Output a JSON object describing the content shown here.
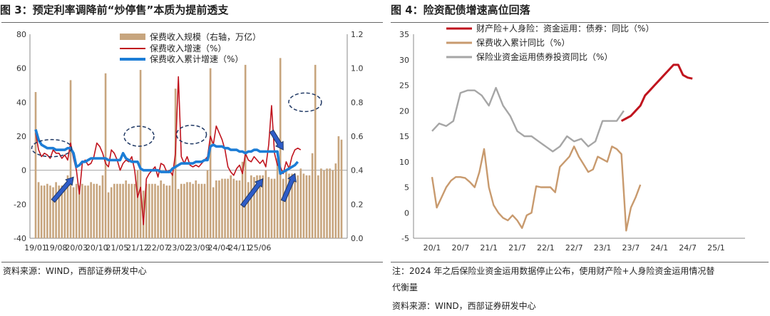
{
  "left": {
    "title": "图 3：预定利率调降前“炒停售”本质为提前透支",
    "source": "资料来源：WIND，西部证券研发中心"
  },
  "right": {
    "title": "图 4：险资配债增速高位回落",
    "note_line1": "注：2024 年之后保险业资金运用数据停止公布，使用财产险+人身险资金运用情况替",
    "note_line2": "代衡量",
    "source": "资料来源：WIND，西部证券研发中心"
  },
  "chart_data": [
    {
      "type": "bar+line",
      "x_ticks": [
        "19/01",
        "19/08",
        "20/03",
        "20/10",
        "21/05",
        "21/12",
        "22/07",
        "23/02",
        "23/09",
        "24/04",
        "24/11",
        "25/06"
      ],
      "y_left_ticks": [
        "80",
        "60",
        "40",
        "20",
        "0",
        "-20",
        "-40"
      ],
      "y_right_ticks": [
        "1.2",
        "1.0",
        "0.8",
        "0.6",
        "0.4",
        "0.2",
        "0.0"
      ],
      "ylim_left": [
        -40,
        80
      ],
      "ylim_right": [
        0,
        1.2
      ],
      "grid": false,
      "legend_position": "top-center",
      "series": [
        {
          "name": "保费收入规模（右轴，万亿）",
          "kind": "bar",
          "axis": "right",
          "color": "#C7A57E",
          "values": [
            0.86,
            0.33,
            0.31,
            0.31,
            0.32,
            0.31,
            0.3,
            0.33,
            0.31,
            0.31,
            0.3,
            0.37,
            0.93,
            0.3,
            0.32,
            0.31,
            0.32,
            0.31,
            0.31,
            0.33,
            0.32,
            0.32,
            0.31,
            0.37,
            0.97,
            0.27,
            0.3,
            0.32,
            0.32,
            0.32,
            0.32,
            0.34,
            0.32,
            0.32,
            0.32,
            0.4,
            0.99,
            0.28,
            0.32,
            0.32,
            0.32,
            0.32,
            0.31,
            0.34,
            0.32,
            0.31,
            0.31,
            0.38,
            0.88,
            0.29,
            0.32,
            0.32,
            0.33,
            0.33,
            0.32,
            0.34,
            0.32,
            0.32,
            0.32,
            0.4,
            1.0,
            0.3,
            0.34,
            0.34,
            0.35,
            0.35,
            0.35,
            0.37,
            0.35,
            0.34,
            0.34,
            0.45,
            1.02,
            0.33,
            0.37,
            0.36,
            0.37,
            0.37,
            0.37,
            0.4,
            0.36,
            0.35,
            0.35,
            0.47,
            1.06,
            0.35,
            0.4,
            0.38,
            0.38,
            0.38,
            0.37,
            0.41,
            0.38,
            0.37,
            0.37,
            0.5,
            1.02,
            0.37,
            0.41,
            0.4,
            0.41,
            0.41,
            0.4,
            0.44,
            0.6,
            0.58
          ]
        },
        {
          "name": "保费收入增速（%）",
          "kind": "line",
          "axis": "left",
          "color": "#C0141E",
          "values": [
            22,
            12,
            8,
            10,
            9,
            7,
            12,
            10,
            10,
            7,
            9,
            6,
            16,
            7,
            0,
            -14,
            4,
            6,
            3,
            4,
            8,
            16,
            14,
            10,
            4,
            2,
            12,
            10,
            6,
            0,
            4,
            6,
            5,
            8,
            0,
            -16,
            -10,
            -32,
            -5,
            -2,
            0,
            2,
            -4,
            4,
            3,
            -1,
            0,
            -3,
            10,
            55,
            8,
            4,
            8,
            3,
            2,
            3,
            2,
            4,
            6,
            8,
            20,
            15,
            26,
            22,
            18,
            12,
            2,
            -1,
            -3,
            1,
            3,
            -2,
            10,
            6,
            5,
            8,
            6,
            4,
            6,
            2,
            15,
            38,
            10,
            3,
            2,
            -2,
            5,
            1,
            8,
            12,
            13,
            12
          ]
        },
        {
          "name": "保费收入累计增速（%）",
          "kind": "line",
          "axis": "left",
          "color": "#1C7DD6",
          "values": [
            24,
            18,
            15,
            14,
            13,
            13,
            13,
            12,
            12,
            12,
            12,
            13,
            13,
            10,
            2,
            3,
            5,
            5,
            6,
            7,
            7,
            7,
            7,
            7,
            7,
            6,
            6,
            6,
            6,
            6,
            10,
            7,
            6,
            5,
            5,
            5,
            1,
            0,
            0,
            0,
            0,
            0,
            0,
            -1,
            -1,
            -1,
            -1,
            1,
            2,
            3,
            4,
            4,
            4,
            4,
            4,
            5,
            5,
            5,
            6,
            6,
            14,
            15,
            14,
            14,
            14,
            13,
            13,
            12,
            12,
            12,
            11,
            11,
            10,
            11,
            11,
            12,
            12,
            11,
            11,
            11,
            11,
            11,
            11,
            11,
            -2,
            -1,
            0,
            1,
            2,
            3,
            5
          ]
        }
      ]
    },
    {
      "type": "line",
      "x_ticks": [
        "20/1",
        "20/7",
        "21/1",
        "21/7",
        "22/1",
        "22/7",
        "23/1",
        "23/7",
        "24/1",
        "24/7",
        "25/1"
      ],
      "y_ticks": [
        "35",
        "30",
        "25",
        "20",
        "15",
        "10",
        "5",
        "0",
        "-5"
      ],
      "ylim": [
        -5,
        35
      ],
      "grid": false,
      "legend_position": "top-left",
      "series": [
        {
          "name": "财产险+人身险：资金运用：债券：同比（%）",
          "color": "#C0141E",
          "x_start": "23/5",
          "values": [
            18,
            18.5,
            19,
            20,
            21,
            23,
            24,
            25,
            26,
            27,
            28,
            29,
            29,
            27,
            26.5,
            26.3
          ]
        },
        {
          "name": "保费收入累计同比（%）",
          "color": "#C89A6E",
          "x_start": "20/1",
          "values": [
            7,
            1,
            3,
            5,
            6.3,
            7,
            7,
            6.8,
            6,
            5,
            8,
            12.5,
            5,
            1.5,
            0,
            -1,
            -1.5,
            -0.5,
            -1.5,
            -3,
            -0.5,
            0,
            5.2,
            5,
            5,
            5,
            4,
            9,
            10,
            11,
            13,
            11,
            9.5,
            8,
            8.5,
            11,
            10.5,
            10,
            13,
            12.5,
            11.5,
            -3.5,
            1,
            3,
            5.5
          ]
        },
        {
          "name": "保险业资金运用债券投资同比（%）",
          "color": "#A6A6A6",
          "x_start": "20/1",
          "values": [
            16,
            17.5,
            17,
            18,
            23.5,
            24,
            24,
            23,
            21,
            24.5,
            21,
            19,
            16,
            15,
            15,
            14,
            13,
            12,
            13,
            15,
            14,
            14.5,
            13,
            14,
            18,
            18,
            18,
            20
          ]
        }
      ]
    }
  ]
}
